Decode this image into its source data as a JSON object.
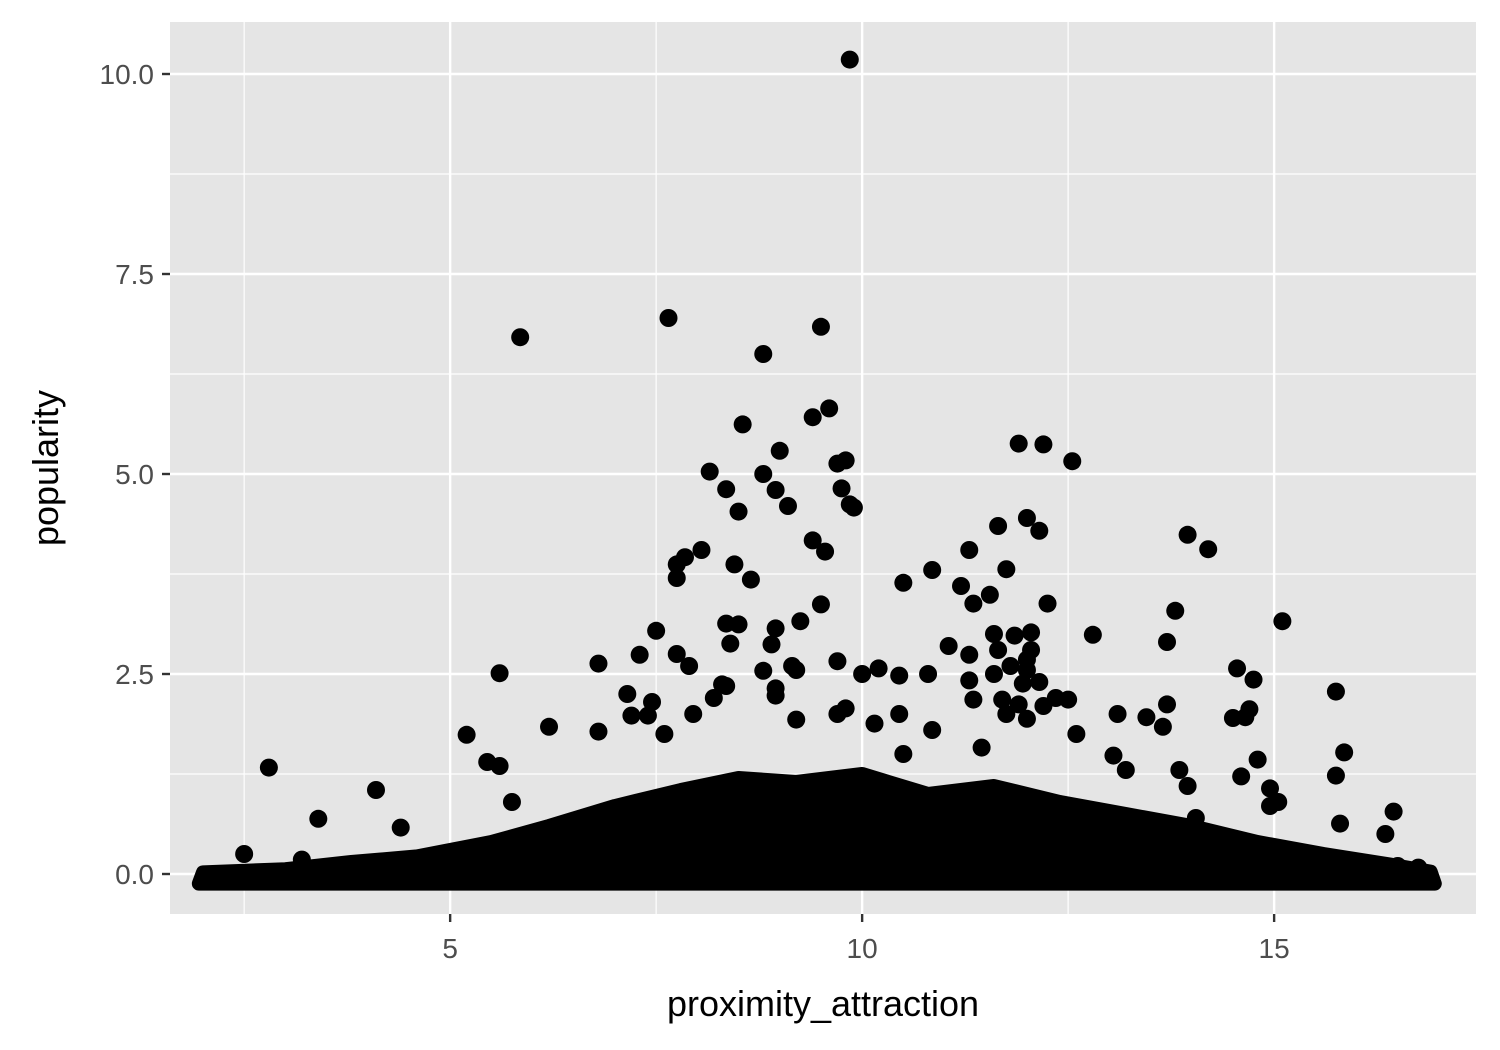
{
  "chart_data": {
    "type": "scatter",
    "title": "",
    "xlabel": "proximity_attraction",
    "ylabel": "popularity",
    "xlim": [
      1.6,
      17.45
    ],
    "ylim": [
      -0.5,
      10.65
    ],
    "x_ticks": [
      5,
      10,
      15
    ],
    "x_tick_labels": [
      "5",
      "10",
      "15"
    ],
    "y_ticks": [
      0,
      2.5,
      5,
      7.5,
      10
    ],
    "y_tick_labels": [
      "0.0",
      "2.5",
      "5.0",
      "7.5",
      "10.0"
    ],
    "grid": true,
    "panel_background": "#e5e5e5",
    "point_color": "#000000",
    "points": [
      [
        9.85,
        10.18
      ],
      [
        7.65,
        6.95
      ],
      [
        5.85,
        6.71
      ],
      [
        9.5,
        6.84
      ],
      [
        8.8,
        6.5
      ],
      [
        9.6,
        5.82
      ],
      [
        9.4,
        5.71
      ],
      [
        8.55,
        5.62
      ],
      [
        9.0,
        5.29
      ],
      [
        11.9,
        5.38
      ],
      [
        12.2,
        5.37
      ],
      [
        12.55,
        5.16
      ],
      [
        9.8,
        5.17
      ],
      [
        9.7,
        5.13
      ],
      [
        8.15,
        5.03
      ],
      [
        8.8,
        5.0
      ],
      [
        8.35,
        4.81
      ],
      [
        8.95,
        4.8
      ],
      [
        9.75,
        4.82
      ],
      [
        9.85,
        4.62
      ],
      [
        9.1,
        4.6
      ],
      [
        9.9,
        4.58
      ],
      [
        8.5,
        4.53
      ],
      [
        12.0,
        4.45
      ],
      [
        11.65,
        4.35
      ],
      [
        12.15,
        4.29
      ],
      [
        13.95,
        4.24
      ],
      [
        14.2,
        4.06
      ],
      [
        9.4,
        4.17
      ],
      [
        9.55,
        4.03
      ],
      [
        11.3,
        4.05
      ],
      [
        8.05,
        4.05
      ],
      [
        7.85,
        3.96
      ],
      [
        7.75,
        3.87
      ],
      [
        8.45,
        3.87
      ],
      [
        10.85,
        3.8
      ],
      [
        11.75,
        3.81
      ],
      [
        7.75,
        3.7
      ],
      [
        8.65,
        3.68
      ],
      [
        10.5,
        3.64
      ],
      [
        11.2,
        3.6
      ],
      [
        11.55,
        3.49
      ],
      [
        9.5,
        3.37
      ],
      [
        11.35,
        3.38
      ],
      [
        12.25,
        3.38
      ],
      [
        13.8,
        3.29
      ],
      [
        9.25,
        3.16
      ],
      [
        15.1,
        3.16
      ],
      [
        8.35,
        3.13
      ],
      [
        8.5,
        3.12
      ],
      [
        8.95,
        3.07
      ],
      [
        7.5,
        3.04
      ],
      [
        11.6,
        3.0
      ],
      [
        12.05,
        3.02
      ],
      [
        11.85,
        2.98
      ],
      [
        12.8,
        2.99
      ],
      [
        8.4,
        2.88
      ],
      [
        8.9,
        2.87
      ],
      [
        13.7,
        2.9
      ],
      [
        11.05,
        2.85
      ],
      [
        11.65,
        2.8
      ],
      [
        12.05,
        2.8
      ],
      [
        7.3,
        2.74
      ],
      [
        7.75,
        2.75
      ],
      [
        11.3,
        2.74
      ],
      [
        12.0,
        2.68
      ],
      [
        9.7,
        2.66
      ],
      [
        11.8,
        2.6
      ],
      [
        6.8,
        2.63
      ],
      [
        7.9,
        2.6
      ],
      [
        9.15,
        2.6
      ],
      [
        9.2,
        2.55
      ],
      [
        8.8,
        2.54
      ],
      [
        14.55,
        2.57
      ],
      [
        12.0,
        2.55
      ],
      [
        10.2,
        2.57
      ],
      [
        10.0,
        2.5
      ],
      [
        10.45,
        2.48
      ],
      [
        10.8,
        2.5
      ],
      [
        11.6,
        2.5
      ],
      [
        14.75,
        2.43
      ],
      [
        5.6,
        2.51
      ],
      [
        8.3,
        2.37
      ],
      [
        8.35,
        2.35
      ],
      [
        8.95,
        2.32
      ],
      [
        11.3,
        2.42
      ],
      [
        11.95,
        2.38
      ],
      [
        12.15,
        2.4
      ],
      [
        15.75,
        2.28
      ],
      [
        7.15,
        2.25
      ],
      [
        8.2,
        2.2
      ],
      [
        8.95,
        2.23
      ],
      [
        11.35,
        2.18
      ],
      [
        11.7,
        2.18
      ],
      [
        12.35,
        2.2
      ],
      [
        12.5,
        2.18
      ],
      [
        7.45,
        2.15
      ],
      [
        11.9,
        2.12
      ],
      [
        12.2,
        2.1
      ],
      [
        13.7,
        2.12
      ],
      [
        9.8,
        2.07
      ],
      [
        10.45,
        2.0
      ],
      [
        11.75,
        2.0
      ],
      [
        13.1,
        2.0
      ],
      [
        13.45,
        1.96
      ],
      [
        14.5,
        1.95
      ],
      [
        14.65,
        1.96
      ],
      [
        14.7,
        2.06
      ],
      [
        7.2,
        1.98
      ],
      [
        7.4,
        1.98
      ],
      [
        7.95,
        2.0
      ],
      [
        9.7,
        2.0
      ],
      [
        9.2,
        1.93
      ],
      [
        10.15,
        1.88
      ],
      [
        12.0,
        1.94
      ],
      [
        13.65,
        1.84
      ],
      [
        6.2,
        1.84
      ],
      [
        10.85,
        1.8
      ],
      [
        12.6,
        1.75
      ],
      [
        6.8,
        1.78
      ],
      [
        5.2,
        1.74
      ],
      [
        7.6,
        1.75
      ],
      [
        11.45,
        1.58
      ],
      [
        15.85,
        1.52
      ],
      [
        14.8,
        1.43
      ],
      [
        10.5,
        1.5
      ],
      [
        13.05,
        1.48
      ],
      [
        5.45,
        1.4
      ],
      [
        5.6,
        1.35
      ],
      [
        2.8,
        1.33
      ],
      [
        13.85,
        1.3
      ],
      [
        13.2,
        1.3
      ],
      [
        15.75,
        1.23
      ],
      [
        14.6,
        1.22
      ],
      [
        14.95,
        1.07
      ],
      [
        13.95,
        1.1
      ],
      [
        4.1,
        1.05
      ],
      [
        5.75,
        0.9
      ],
      [
        15.05,
        0.9
      ],
      [
        14.95,
        0.85
      ],
      [
        3.4,
        0.69
      ],
      [
        14.05,
        0.7
      ],
      [
        4.4,
        0.58
      ],
      [
        15.8,
        0.63
      ],
      [
        16.45,
        0.78
      ],
      [
        16.35,
        0.5
      ],
      [
        2.5,
        0.25
      ],
      [
        3.2,
        0.18
      ],
      [
        15.9,
        0.15
      ],
      [
        16.5,
        0.1
      ],
      [
        16.75,
        0.08
      ]
    ]
  }
}
